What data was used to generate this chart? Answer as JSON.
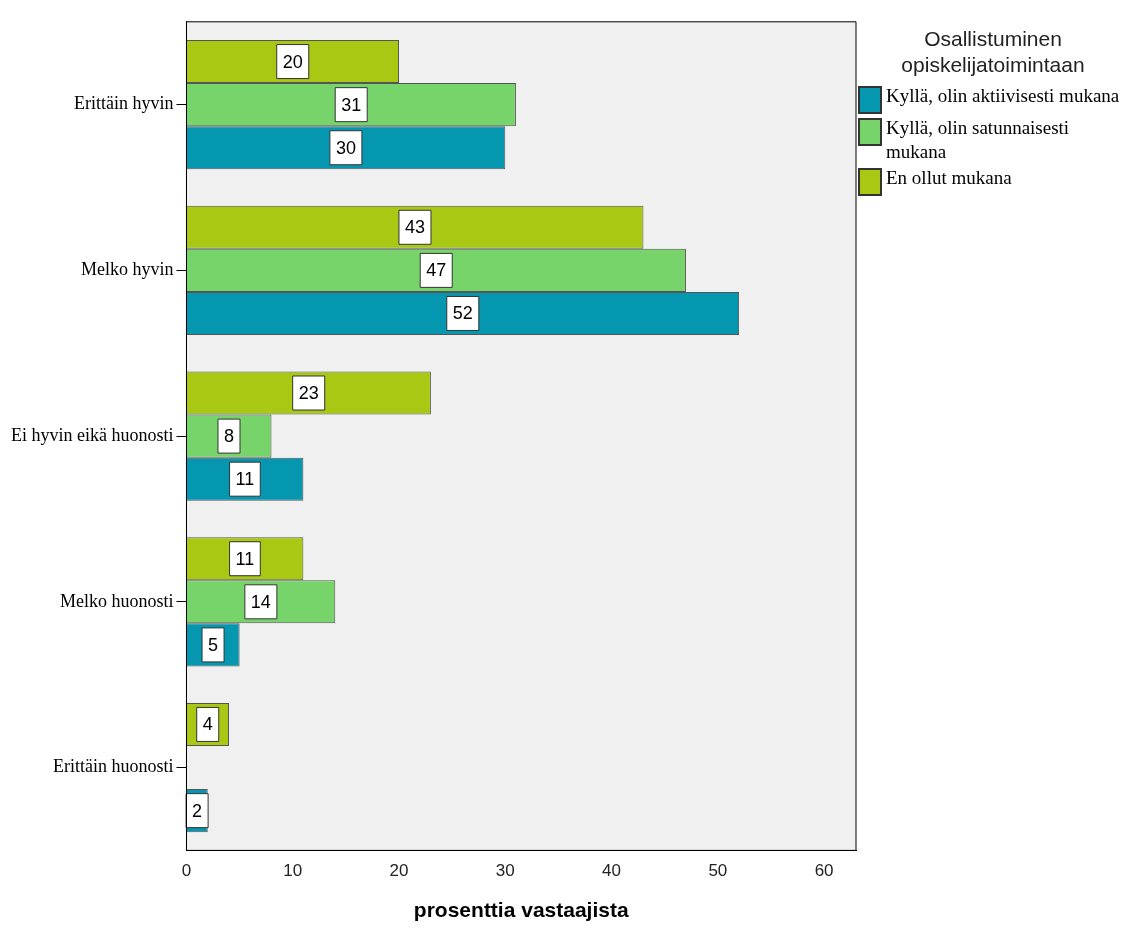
{
  "chart_data": {
    "type": "bar",
    "orientation": "horizontal",
    "xlabel": "prosenttia vastaajista",
    "legend_title": "Osallistuminen opiskelijatoimintaan",
    "categories": [
      "Erittäin hyvin",
      "Melko hyvin",
      "Ei hyvin eikä huonosti",
      "Melko huonosti",
      "Erittäin huonosti"
    ],
    "series": [
      {
        "name": "Kyllä, olin aktiivisesti mukana",
        "color": "#0596b0",
        "values": [
          30,
          52,
          11,
          5,
          2
        ]
      },
      {
        "name": "Kyllä, olin satunnaisesti mukana",
        "color": "#77d46a",
        "values": [
          31,
          47,
          8,
          14,
          null
        ]
      },
      {
        "name": "En ollut mukana",
        "color": "#a8c814",
        "values": [
          20,
          43,
          23,
          11,
          4
        ]
      }
    ],
    "xlim": [
      0,
      63
    ],
    "xticks": [
      0,
      10,
      20,
      30,
      40,
      50,
      60
    ],
    "grid": false,
    "legend": "right",
    "data_labels": true
  }
}
